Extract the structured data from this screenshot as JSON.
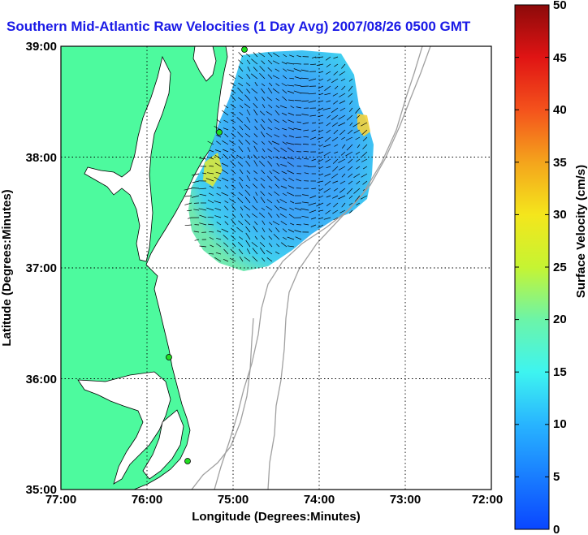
{
  "title": "Southern Mid-Atlantic Raw Velocities (1 Day Avg) 2007/08/26 0500 GMT",
  "map": {
    "xlabel": "Longitude (Degrees:Minutes)",
    "ylabel": "Latitude (Degrees:Minutes)",
    "x_ticks": [
      "77:00",
      "76:00",
      "75:00",
      "74:00",
      "73:00",
      "72:00"
    ],
    "y_ticks": [
      "39:00",
      "38:00",
      "37:00",
      "36:00",
      "35:00"
    ],
    "lon_range": [
      -77,
      -72
    ],
    "lat_range": [
      35,
      39
    ],
    "colors": {
      "land": "#4dfa9e",
      "water": "#ffffff",
      "bathymetry": "#a0a0a0",
      "station": "#22dd22",
      "grid": "#000000"
    }
  },
  "colorbar": {
    "label": "Surface Velocity (cm/s)",
    "ticks": [
      "50",
      "45",
      "40",
      "35",
      "30",
      "25",
      "20",
      "15",
      "10",
      "5",
      "0"
    ],
    "range": [
      0,
      50
    ]
  }
}
